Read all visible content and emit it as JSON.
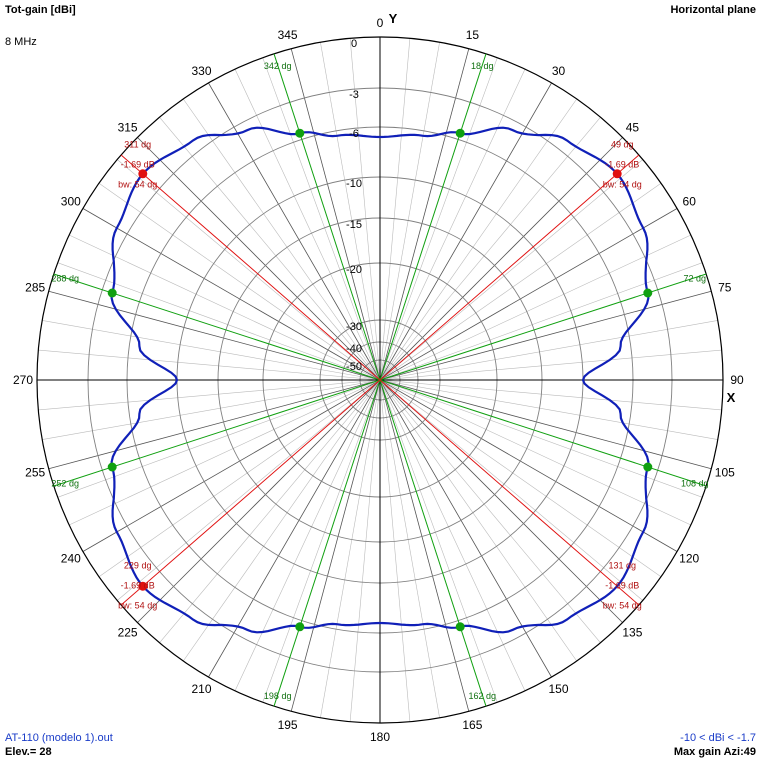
{
  "header": {
    "title": "Tot-gain [dBi]",
    "frequency": "8 MHz",
    "plane": "Horizontal plane"
  },
  "footer": {
    "file": "AT-110 (modelo 1).out",
    "elevation": "Elev.= 28",
    "gain_range": "-10 < dBi < -1.7",
    "max_gain": "Max gain Azi:49"
  },
  "axes": {
    "y_label": "Y",
    "x_label": "X"
  },
  "colors": {
    "pattern": "#1020b8",
    "beamwidth": "#e01010",
    "markers": "#10a010",
    "rings": "#808080",
    "axes": "#000000"
  },
  "chart_data": {
    "type": "polar",
    "radial_ticks_db": [
      0,
      -3,
      -6,
      -10,
      -15,
      -20,
      -30,
      -40,
      -50
    ],
    "radial_tick_labels": [
      "0",
      "-3",
      "-6",
      "-10",
      "-15",
      "-20",
      "-30",
      "-40",
      "-50"
    ],
    "angle_labels": [
      "0",
      "15",
      "30",
      "45",
      "60",
      "75",
      "90",
      "105",
      "120",
      "135",
      "150",
      "165",
      "180",
      "195",
      "210",
      "225",
      "240",
      "255",
      "270",
      "285",
      "300",
      "315",
      "330",
      "345"
    ],
    "max_gain_db": -1.69,
    "min_gain_db": -10,
    "pattern_points": [
      {
        "azimuth": 0,
        "gain_db": -6.8
      },
      {
        "azimuth": 10,
        "gain_db": -6.4
      },
      {
        "azimuth": 18,
        "gain_db": -5.5
      },
      {
        "azimuth": 28,
        "gain_db": -3.7
      },
      {
        "azimuth": 38,
        "gain_db": -2.3
      },
      {
        "azimuth": 49,
        "gain_db": -1.69
      },
      {
        "azimuth": 60,
        "gain_db": -2.3
      },
      {
        "azimuth": 72,
        "gain_db": -3.8
      },
      {
        "azimuth": 82,
        "gain_db": -6.8
      },
      {
        "azimuth": 90,
        "gain_db": -10
      }
    ],
    "pattern_symmetry": "quadrant",
    "beamwidth_lines": [
      {
        "azimuth": 49,
        "label_angle": "49 dg",
        "label_gain": "-1.69 dB",
        "label_bw": "bw: 54 dg",
        "marker": true
      },
      {
        "azimuth": 131,
        "label_angle": "131 dg",
        "label_gain": "-1.69 dB",
        "label_bw": "bw: 54 dg",
        "marker": false
      },
      {
        "azimuth": 229,
        "label_angle": "229 dg",
        "label_gain": "-1.69 dB",
        "label_bw": "bw: 54 dg",
        "marker": true
      },
      {
        "azimuth": 311,
        "label_angle": "311 dg",
        "label_gain": "-1.69 dB",
        "label_bw": "bw: 54 dg",
        "marker": true
      }
    ],
    "half_power_lines": [
      {
        "azimuth": 18,
        "label": "18 dg"
      },
      {
        "azimuth": 72,
        "label": "72 dg"
      },
      {
        "azimuth": 108,
        "label": "108 dg"
      },
      {
        "azimuth": 162,
        "label": "162 dg"
      },
      {
        "azimuth": 198,
        "label": "198 dg"
      },
      {
        "azimuth": 252,
        "label": "252 dg"
      },
      {
        "azimuth": 288,
        "label": "288 dg"
      },
      {
        "azimuth": 342,
        "label": "342 dg"
      }
    ]
  }
}
